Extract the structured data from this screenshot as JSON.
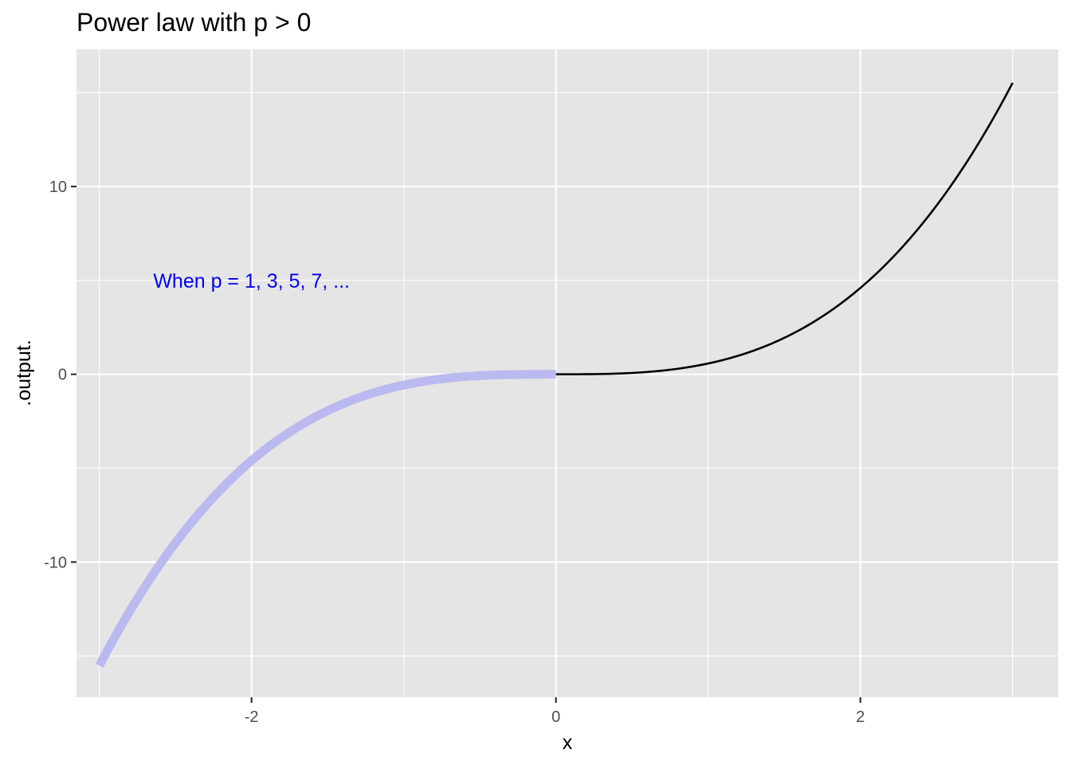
{
  "chart_data": {
    "type": "line",
    "title": "Power law with p > 0",
    "xlabel": "x",
    "ylabel": ".output.",
    "xlim": [
      -3.15,
      3.3
    ],
    "ylim": [
      -17.2,
      17.3
    ],
    "x_ticks": [
      -2,
      0,
      2
    ],
    "x_tick_labels": [
      "-2",
      "0",
      "2"
    ],
    "y_ticks": [
      -10,
      0,
      10
    ],
    "y_tick_labels": [
      "-10",
      "0",
      "10"
    ],
    "x_minor_ticks": [
      -3,
      -1,
      1,
      3
    ],
    "y_minor_ticks": [
      -15,
      -5,
      5,
      15
    ],
    "grid": true,
    "panel_color": "#e5e5e5",
    "grid_color": "#ffffff",
    "series": [
      {
        "function": "x^3 / 1.74",
        "x_range": [
          -3,
          0
        ],
        "color": "#babaf0",
        "style": "thick",
        "sample_points": [
          [
            -3,
            -15.5
          ],
          [
            -2,
            -4.6
          ],
          [
            -1,
            -0.6
          ],
          [
            0,
            0
          ]
        ]
      },
      {
        "function": "x^3 / 1.74",
        "x_range": [
          0,
          3
        ],
        "color": "#000000",
        "style": "thin",
        "sample_points": [
          [
            0,
            0
          ],
          [
            1,
            0.6
          ],
          [
            2,
            4.6
          ],
          [
            3,
            15.5
          ]
        ]
      }
    ],
    "annotations": [
      {
        "text": "When p = 1, 3, 5, 7, ...",
        "x": -2.0,
        "y": 5,
        "color": "#0000ff"
      }
    ]
  }
}
